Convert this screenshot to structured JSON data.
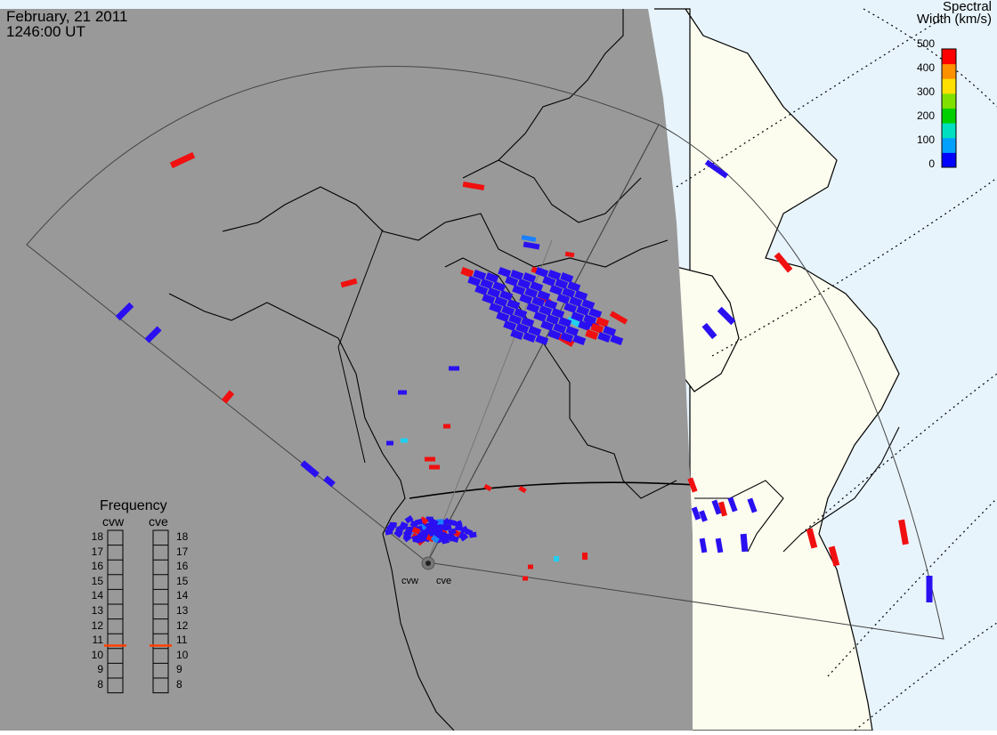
{
  "header": {
    "date": "February, 21 2011",
    "time": "1246:00 UT"
  },
  "colorbar": {
    "title_line1": "Spectral",
    "title_line2": "Width (km/s)",
    "ticks": [
      "500",
      "400",
      "300",
      "200",
      "100",
      "0"
    ],
    "colors": [
      "#0000ff",
      "#00a0ff",
      "#00e0c0",
      "#00d000",
      "#80e000",
      "#ffe000",
      "#ff9000",
      "#ff0000"
    ]
  },
  "frequency": {
    "title": "Frequency",
    "radars": [
      "cvw",
      "cve"
    ],
    "ticks": [
      "18",
      "17",
      "16",
      "15",
      "14",
      "13",
      "12",
      "11",
      "10",
      "9",
      "8"
    ],
    "current_mhz": [
      10.7,
      10.7
    ],
    "marker_color": "#ff4000"
  },
  "sites": [
    "cvw",
    "cve"
  ],
  "map_colors": {
    "night": "#999999",
    "land_day": "#fcfcef",
    "ocean_day": "#e8f4fc",
    "coast": "#000000"
  },
  "scatter_colors": {
    "blue": "#2a10f0",
    "red": "#f01010",
    "cyan": "#20d0f0",
    "mid": "#1a80ff"
  }
}
